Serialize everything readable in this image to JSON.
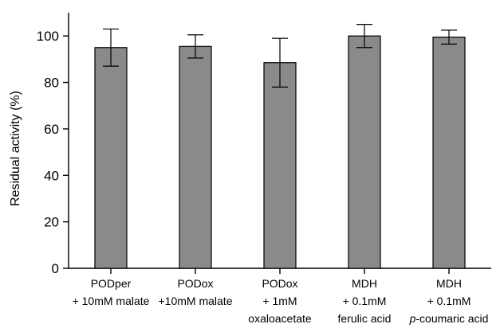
{
  "chart_data": {
    "type": "bar",
    "ylabel": "Residual activity (%)",
    "xlabel": "",
    "ylim": [
      0,
      110
    ],
    "yticks": [
      0,
      20,
      40,
      60,
      80,
      100
    ],
    "grid": false,
    "categories": [
      {
        "lines": [
          {
            "parts": [
              {
                "text": "PODper",
                "italic": false
              }
            ]
          },
          {
            "parts": [
              {
                "text": "+ 10mM malate",
                "italic": false
              }
            ]
          }
        ]
      },
      {
        "lines": [
          {
            "parts": [
              {
                "text": "PODox",
                "italic": false
              }
            ]
          },
          {
            "parts": [
              {
                "text": "+10mM malate",
                "italic": false
              }
            ]
          }
        ]
      },
      {
        "lines": [
          {
            "parts": [
              {
                "text": "PODox",
                "italic": false
              }
            ]
          },
          {
            "parts": [
              {
                "text": "+ 1mM",
                "italic": false
              }
            ]
          },
          {
            "parts": [
              {
                "text": "oxaloacetate",
                "italic": false
              }
            ]
          }
        ]
      },
      {
        "lines": [
          {
            "parts": [
              {
                "text": "MDH",
                "italic": false
              }
            ]
          },
          {
            "parts": [
              {
                "text": "+ 0.1mM",
                "italic": false
              }
            ]
          },
          {
            "parts": [
              {
                "text": "ferulic acid",
                "italic": false
              }
            ]
          }
        ]
      },
      {
        "lines": [
          {
            "parts": [
              {
                "text": "MDH",
                "italic": false
              }
            ]
          },
          {
            "parts": [
              {
                "text": "+ 0.1mM",
                "italic": false
              }
            ]
          },
          {
            "parts": [
              {
                "text": "p",
                "italic": true
              },
              {
                "text": "-coumaric acid",
                "italic": false
              }
            ]
          }
        ]
      }
    ],
    "values": [
      95,
      95.5,
      88.5,
      100,
      99.5
    ],
    "errors": [
      8,
      5,
      10.5,
      5,
      3
    ],
    "bar_color": "#8a8a8a"
  }
}
